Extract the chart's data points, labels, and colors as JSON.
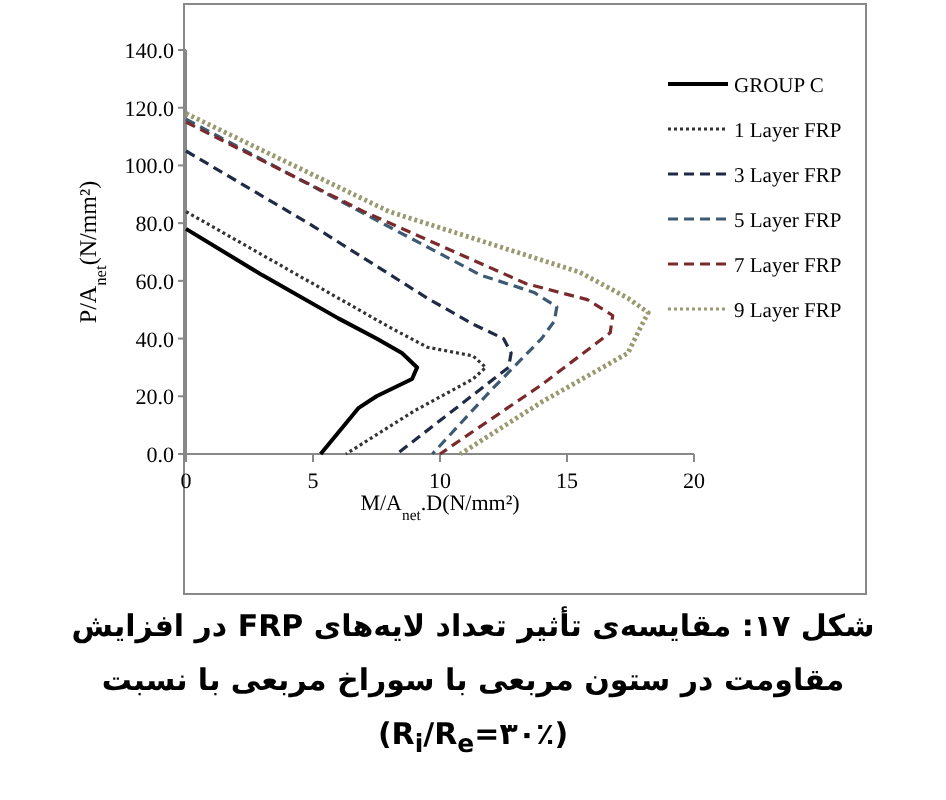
{
  "chart_data": {
    "type": "line",
    "title": "شکل ۱۷: مقایسه‌ی تأثیر تعداد لایه‌های FRP در افزایش مقاومت در ستون مربعی با سوراخ مربعی با نسبت (R$_{i}$/R$_{e}$=۳۰٪)",
    "xlabel": "M/A$_{net}$.D(N/mm²)",
    "ylabel": "P/A$_{net}$(N/mm²)",
    "xlim": [
      0,
      20
    ],
    "xticks": [
      0,
      5,
      10,
      15,
      20
    ],
    "ylim": [
      0,
      140
    ],
    "yticks": [
      {
        "value": 0,
        "label": "0.0"
      },
      {
        "value": 20,
        "label": "20.0"
      },
      {
        "value": 40,
        "label": "40.0"
      },
      {
        "value": 60,
        "label": "60.0"
      },
      {
        "value": 80,
        "label": "80.0"
      },
      {
        "value": 100,
        "label": "100.0"
      },
      {
        "value": 120,
        "label": "120.0"
      },
      {
        "value": 140,
        "label": "140.0"
      }
    ],
    "grid": false,
    "legend": "right",
    "marker": "none",
    "series": [
      {
        "name": "GROUP C",
        "color": "#000000",
        "line_style": "solid",
        "x": [
          0,
          3,
          6,
          7.5,
          8.5,
          9.1,
          8.9,
          7.5,
          6.8,
          5.3
        ],
        "values": [
          78,
          62,
          47,
          40,
          35,
          30,
          26,
          20,
          16,
          0
        ]
      },
      {
        "name": "1 Layer FRP",
        "color": "#333333",
        "line_style": "dotted",
        "x": [
          0,
          4,
          8,
          9.5,
          11.3,
          11.8,
          11.3,
          9,
          6.3
        ],
        "values": [
          84,
          64,
          44,
          37,
          34,
          30,
          26,
          15,
          0
        ]
      },
      {
        "name": "3 Layer FRP",
        "color": "#1f2a44",
        "line_style": "dashed",
        "x": [
          0,
          5,
          9.5,
          11.3,
          12.5,
          12.8,
          12.7,
          10.5,
          8.3
        ],
        "values": [
          105,
          79,
          54,
          45,
          40,
          35,
          30,
          15,
          0
        ]
      },
      {
        "name": "5 Layer FRP",
        "color": "#3d5a73",
        "line_style": "dashed",
        "x": [
          0,
          6,
          11.6,
          13.7,
          14.6,
          14.5,
          14,
          12,
          9.7
        ],
        "values": [
          116,
          88,
          62,
          56,
          51,
          46,
          40,
          22,
          0
        ]
      },
      {
        "name": "7 Layer FRP",
        "color": "#7a2a2a",
        "line_style": "dashed",
        "x": [
          0,
          7,
          13.4,
          15.8,
          16.8,
          16.7,
          14,
          10
        ],
        "values": [
          115,
          84,
          59,
          53.5,
          48,
          42,
          24,
          0
        ]
      },
      {
        "name": "9 Layer FRP",
        "color": "#9a9a70",
        "line_style": "dotted",
        "x": [
          0,
          8,
          15.5,
          17.4,
          18.2,
          17.9,
          17.4,
          14,
          10.8
        ],
        "values": [
          118,
          84,
          63,
          54,
          49,
          44,
          35,
          18,
          0
        ]
      }
    ]
  }
}
